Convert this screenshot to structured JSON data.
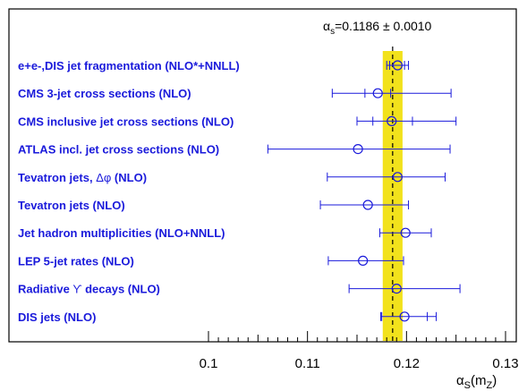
{
  "chart_data": {
    "type": "scatter",
    "title": "",
    "average": {
      "symbol": "α",
      "subscript": "s",
      "text": "=0.1186 ± 0.0010",
      "value": 0.1186,
      "uncertainty": 0.001
    },
    "xlabel": {
      "symbol": "α",
      "subscript": "S",
      "text": "(m",
      "subscript2": "Z",
      "close": ")"
    },
    "xlim": [
      0.094,
      0.13
    ],
    "xticks": [
      0.1,
      0.11,
      0.12,
      0.13
    ],
    "xtick_labels": [
      "0.1",
      "0.11",
      "0.12",
      "0.13"
    ],
    "band_color": "#f2e21c",
    "marker_color": "#1a1adb",
    "measurements": [
      {
        "label": "e+e-,DIS jet fragmentation (NLO*+NNLL)",
        "value": 0.1191,
        "err_lo": 0.0011,
        "err_hi": 0.0011,
        "syst_lo": 0.0008,
        "syst_hi": 0.0007
      },
      {
        "label": "CMS 3-jet cross sections (NLO)",
        "value": 0.1171,
        "err_lo": 0.0046,
        "err_hi": 0.0074,
        "syst_lo": 0.0013,
        "syst_hi": 0.0013
      },
      {
        "label": "CMS inclusive jet cross sections (NLO)",
        "value": 0.1185,
        "err_lo": 0.0035,
        "err_hi": 0.0065,
        "syst_lo": 0.0019,
        "syst_hi": 0.0021
      },
      {
        "label": "ATLAS incl. jet cross sections (NLO)",
        "value": 0.1151,
        "err_lo": 0.0091,
        "err_hi": 0.0093,
        "syst_lo": null,
        "syst_hi": null
      },
      {
        "label": "Tevatron jets, ",
        "label_greek": "Δφ",
        "label_tail": " (NLO)",
        "value": 0.1191,
        "err_lo": 0.0071,
        "err_hi": 0.0048,
        "syst_lo": null,
        "syst_hi": null
      },
      {
        "label": "Tevatron jets (NLO)",
        "value": 0.1161,
        "err_lo": 0.0048,
        "err_hi": 0.0041,
        "syst_lo": null,
        "syst_hi": null
      },
      {
        "label": "Jet hadron multiplicities (NLO+NNLL)",
        "value": 0.1199,
        "err_lo": 0.0026,
        "err_hi": 0.0026,
        "syst_lo": null,
        "syst_hi": null
      },
      {
        "label": "LEP 5-jet rates (NLO)",
        "value": 0.1156,
        "err_lo": 0.0035,
        "err_hi": 0.0041,
        "syst_lo": null,
        "syst_hi": null
      },
      {
        "label": "Radiative ",
        "label_greek": "ϒ",
        "label_tail": " decays (NLO)",
        "value": 0.119,
        "err_lo": 0.0048,
        "err_hi": 0.0064,
        "syst_lo": null,
        "syst_hi": null
      },
      {
        "label": "DIS jets (NLO)",
        "value": 0.1198,
        "err_lo": 0.0024,
        "err_hi": 0.0032,
        "syst_lo": 0.0023,
        "syst_hi": 0.0023
      }
    ]
  }
}
